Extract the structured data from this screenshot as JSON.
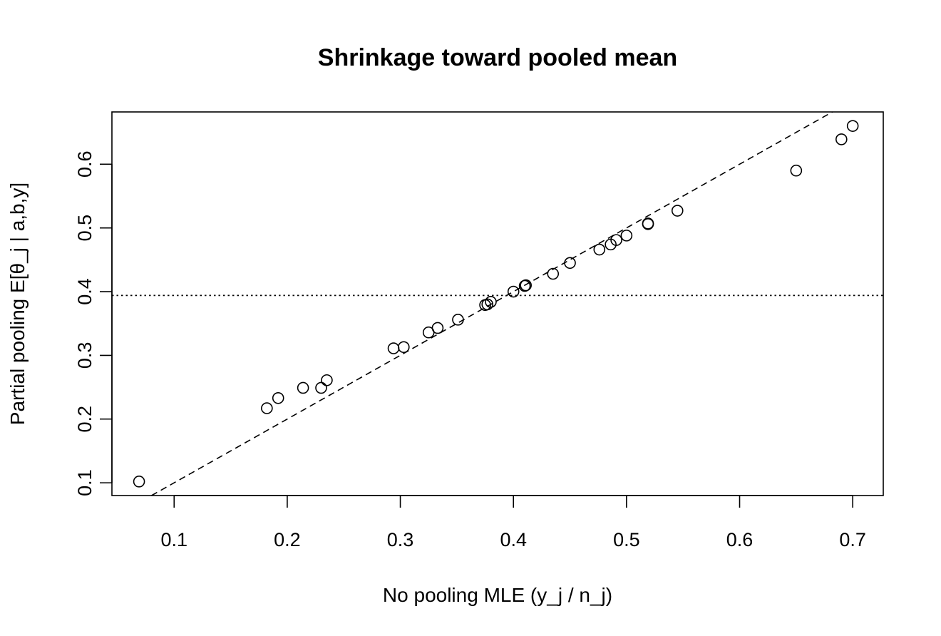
{
  "chart_data": {
    "type": "scatter",
    "title": "Shrinkage toward pooled mean",
    "xlabel": "No pooling MLE (y_j / n_j)",
    "ylabel": "Partial pooling E[θ_j | a,b,y]",
    "xlim": [
      0.045,
      0.727
    ],
    "ylim": [
      0.08,
      0.682
    ],
    "x_ticks": [
      0.1,
      0.2,
      0.3,
      0.4,
      0.5,
      0.6,
      0.7
    ],
    "x_tick_labels": [
      "0.1",
      "0.2",
      "0.3",
      "0.4",
      "0.5",
      "0.6",
      "0.7"
    ],
    "y_ticks": [
      0.1,
      0.2,
      0.3,
      0.4,
      0.5,
      0.6
    ],
    "y_tick_labels": [
      "0.1",
      "0.2",
      "0.3",
      "0.4",
      "0.5",
      "0.6"
    ],
    "grid": false,
    "reference_lines": [
      {
        "kind": "identity",
        "style": "dashed",
        "slope": 1,
        "intercept": 0
      },
      {
        "kind": "horizontal",
        "style": "dotted",
        "y": 0.394
      }
    ],
    "points": [
      {
        "x": 0.069,
        "y": 0.102
      },
      {
        "x": 0.182,
        "y": 0.217
      },
      {
        "x": 0.192,
        "y": 0.233
      },
      {
        "x": 0.214,
        "y": 0.249
      },
      {
        "x": 0.23,
        "y": 0.249
      },
      {
        "x": 0.235,
        "y": 0.261
      },
      {
        "x": 0.294,
        "y": 0.311
      },
      {
        "x": 0.303,
        "y": 0.313
      },
      {
        "x": 0.325,
        "y": 0.336
      },
      {
        "x": 0.333,
        "y": 0.343
      },
      {
        "x": 0.351,
        "y": 0.356
      },
      {
        "x": 0.375,
        "y": 0.379
      },
      {
        "x": 0.377,
        "y": 0.38
      },
      {
        "x": 0.38,
        "y": 0.384
      },
      {
        "x": 0.4,
        "y": 0.4
      },
      {
        "x": 0.41,
        "y": 0.409
      },
      {
        "x": 0.411,
        "y": 0.41
      },
      {
        "x": 0.435,
        "y": 0.428
      },
      {
        "x": 0.45,
        "y": 0.445
      },
      {
        "x": 0.476,
        "y": 0.466
      },
      {
        "x": 0.486,
        "y": 0.474
      },
      {
        "x": 0.491,
        "y": 0.481
      },
      {
        "x": 0.5,
        "y": 0.488
      },
      {
        "x": 0.519,
        "y": 0.506
      },
      {
        "x": 0.519,
        "y": 0.507
      },
      {
        "x": 0.545,
        "y": 0.527
      },
      {
        "x": 0.65,
        "y": 0.59
      },
      {
        "x": 0.69,
        "y": 0.639
      },
      {
        "x": 0.7,
        "y": 0.66
      }
    ]
  }
}
